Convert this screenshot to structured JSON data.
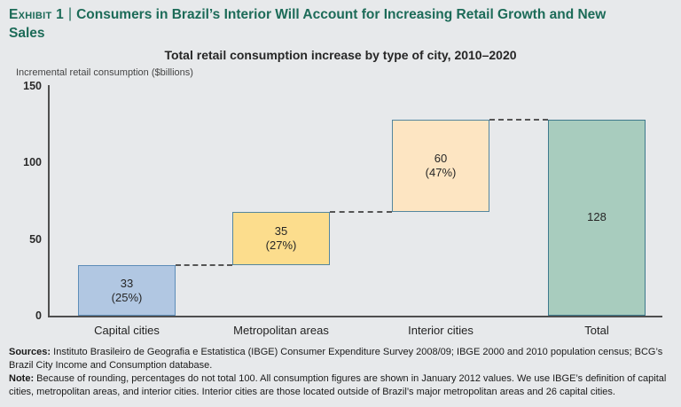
{
  "page": {
    "background": "#e7e9eb"
  },
  "header": {
    "exhibit_label": "Exhibit 1",
    "separator": "|",
    "title": "Consumers in Brazil’s Interior Will Account for Increasing Retail Growth and New Sales",
    "color": "#1c6b58"
  },
  "chart_data": {
    "type": "bar",
    "subtype": "waterfall",
    "title": "Total retail consumption increase by type of city, 2010–2020",
    "ylabel": "Incremental retail consumption ($billions)",
    "ylim": [
      0,
      150
    ],
    "yticks": [
      0,
      50,
      100,
      150
    ],
    "grid": false,
    "legend": false,
    "categories": [
      "Capital cities",
      "Metropolitan areas",
      "Interior cities",
      "Total"
    ],
    "bars": [
      {
        "category": "Capital cities",
        "start": 0,
        "end": 33,
        "value": 33,
        "label": "33",
        "sublabel": "(25%)",
        "fill": "#b1c7e2",
        "border": "#5d8db8"
      },
      {
        "category": "Metropolitan areas",
        "start": 33,
        "end": 68,
        "value": 35,
        "label": "35",
        "sublabel": "(27%)",
        "fill": "#fcdd8d",
        "border": "#54869e"
      },
      {
        "category": "Interior cities",
        "start": 68,
        "end": 128,
        "value": 60,
        "label": "60",
        "sublabel": "(47%)",
        "fill": "#fde5c2",
        "border": "#54869e"
      },
      {
        "category": "Total",
        "start": 0,
        "end": 128,
        "value": 128,
        "label": "128",
        "sublabel": "",
        "fill": "#a8ccbe",
        "border": "#3e7a8c"
      }
    ],
    "connectors": [
      {
        "level": 33,
        "from": 0,
        "to": 1
      },
      {
        "level": 68,
        "from": 1,
        "to": 2
      },
      {
        "level": 128,
        "from": 2,
        "to": 3
      }
    ],
    "axis_color": "#4f4f4f",
    "connector_color": "#555555"
  },
  "footer": {
    "sources_label": "Sources:",
    "sources_text": "Instituto Brasileiro de Geografia e Estatistica (IBGE) Consumer Expenditure Survey 2008/09; IBGE 2000 and 2010 population census; BCG’s Brazil City Income and Consumption database.",
    "note_label": "Note:",
    "note_text": "Because of rounding, percentages do not total 100. All consumption figures are shown in January 2012 values. We use IBGE’s definition of capital cities, metropolitan areas, and interior cities. Interior cities are those located outside of Brazil’s major metropolitan areas and 26 capital cities."
  }
}
